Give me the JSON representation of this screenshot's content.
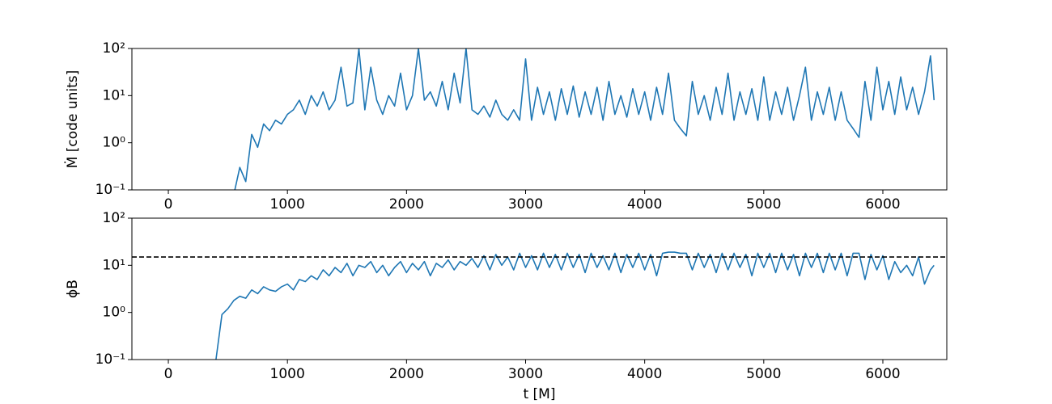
{
  "chart_data": [
    {
      "type": "line",
      "ylabel": "Ṁ [code units]",
      "xlim": [
        -306,
        6537
      ],
      "xticks": [
        0,
        1000,
        2000,
        3000,
        4000,
        5000,
        6000
      ],
      "ylim": [
        0.1,
        100
      ],
      "log_y": true,
      "yticks": [
        {
          "value": 0.1,
          "label": "10⁻¹"
        },
        {
          "value": 1,
          "label": "10⁰"
        },
        {
          "value": 10,
          "label": "10¹"
        },
        {
          "value": 100,
          "label": "10²"
        }
      ],
      "x": [
        550,
        600,
        650,
        700,
        750,
        800,
        850,
        900,
        950,
        1000,
        1050,
        1100,
        1150,
        1200,
        1250,
        1300,
        1350,
        1400,
        1450,
        1500,
        1550,
        1600,
        1650,
        1700,
        1750,
        1800,
        1850,
        1900,
        1950,
        2000,
        2050,
        2100,
        2150,
        2200,
        2250,
        2300,
        2350,
        2400,
        2450,
        2500,
        2550,
        2600,
        2650,
        2700,
        2750,
        2800,
        2850,
        2900,
        2950,
        3000,
        3050,
        3100,
        3150,
        3200,
        3250,
        3300,
        3350,
        3400,
        3450,
        3500,
        3550,
        3600,
        3650,
        3700,
        3750,
        3800,
        3850,
        3900,
        3950,
        4000,
        4050,
        4100,
        4150,
        4200,
        4250,
        4300,
        4350,
        4400,
        4450,
        4500,
        4550,
        4600,
        4650,
        4700,
        4750,
        4800,
        4850,
        4900,
        4950,
        5000,
        5050,
        5100,
        5150,
        5200,
        5250,
        5300,
        5350,
        5400,
        5450,
        5500,
        5550,
        5600,
        5650,
        5700,
        5750,
        5800,
        5850,
        5900,
        5950,
        6000,
        6050,
        6100,
        6150,
        6200,
        6250,
        6300,
        6350,
        6400,
        6430
      ],
      "series": [
        {
          "color": "#1f77b4",
          "values": [
            0.08,
            0.3,
            0.15,
            1.5,
            0.8,
            2.5,
            1.8,
            3,
            2.5,
            4,
            5,
            8,
            4,
            10,
            6,
            12,
            5,
            8,
            40,
            6,
            7,
            100,
            5,
            40,
            8,
            4,
            10,
            6,
            30,
            5,
            10,
            100,
            8,
            12,
            6,
            20,
            5,
            30,
            7,
            100,
            5,
            4,
            6,
            3.5,
            8,
            4,
            3,
            5,
            3,
            60,
            3,
            15,
            4,
            12,
            3,
            14,
            4,
            16,
            3.5,
            12,
            4,
            15,
            3,
            20,
            4,
            10,
            3.5,
            14,
            4,
            12,
            3,
            15,
            4,
            30,
            3,
            2,
            1.4,
            20,
            4,
            10,
            3,
            15,
            4,
            30,
            3,
            12,
            4,
            14,
            3,
            25,
            3,
            12,
            4,
            15,
            3,
            10,
            40,
            3,
            12,
            4,
            15,
            3,
            12,
            3,
            2,
            1.3,
            20,
            3,
            40,
            5,
            20,
            4,
            25,
            5,
            15,
            4,
            12,
            70,
            8
          ]
        }
      ]
    },
    {
      "type": "line",
      "ylabel": "ϕB",
      "xlabel": "t [M]",
      "xlim": [
        -306,
        6537
      ],
      "xticks": [
        0,
        1000,
        2000,
        3000,
        4000,
        5000,
        6000
      ],
      "ylim": [
        0.1,
        100
      ],
      "log_y": true,
      "yticks": [
        {
          "value": 0.1,
          "label": "10⁻¹"
        },
        {
          "value": 1,
          "label": "10⁰"
        },
        {
          "value": 10,
          "label": "10¹"
        },
        {
          "value": 100,
          "label": "10²"
        }
      ],
      "hlines": [
        {
          "value": 15,
          "color": "#000000",
          "style": "dashed"
        }
      ],
      "x": [
        400,
        450,
        500,
        550,
        600,
        650,
        700,
        750,
        800,
        850,
        900,
        950,
        1000,
        1050,
        1100,
        1150,
        1200,
        1250,
        1300,
        1350,
        1400,
        1450,
        1500,
        1550,
        1600,
        1650,
        1700,
        1750,
        1800,
        1850,
        1900,
        1950,
        2000,
        2050,
        2100,
        2150,
        2200,
        2250,
        2300,
        2350,
        2400,
        2450,
        2500,
        2550,
        2600,
        2650,
        2700,
        2750,
        2800,
        2850,
        2900,
        2950,
        3000,
        3050,
        3100,
        3150,
        3200,
        3250,
        3300,
        3350,
        3400,
        3450,
        3500,
        3550,
        3600,
        3650,
        3700,
        3750,
        3800,
        3850,
        3900,
        3950,
        4000,
        4050,
        4100,
        4150,
        4200,
        4250,
        4300,
        4350,
        4400,
        4450,
        4500,
        4550,
        4600,
        4650,
        4700,
        4750,
        4800,
        4850,
        4900,
        4950,
        5000,
        5050,
        5100,
        5150,
        5200,
        5250,
        5300,
        5350,
        5400,
        5450,
        5500,
        5550,
        5600,
        5650,
        5700,
        5750,
        5800,
        5850,
        5900,
        5950,
        6000,
        6050,
        6100,
        6150,
        6200,
        6250,
        6300,
        6350,
        6400,
        6430
      ],
      "series": [
        {
          "color": "#1f77b4",
          "values": [
            0.1,
            0.9,
            1.2,
            1.8,
            2.2,
            2,
            3,
            2.5,
            3.5,
            3,
            2.8,
            3.5,
            4,
            3,
            5,
            4.5,
            6,
            5,
            8,
            6,
            9,
            7,
            11,
            6,
            10,
            9,
            12,
            7,
            10,
            6,
            9,
            12,
            7,
            11,
            8,
            12,
            6,
            11,
            9,
            13,
            8,
            12,
            10,
            14,
            9,
            16,
            8,
            17,
            10,
            15,
            8,
            18,
            9,
            16,
            8,
            18,
            9,
            17,
            8,
            18,
            9,
            17,
            7,
            18,
            9,
            16,
            8,
            18,
            7,
            17,
            9,
            18,
            8,
            17,
            6,
            18,
            19,
            19,
            18,
            18,
            8,
            18,
            9,
            17,
            7,
            18,
            8,
            18,
            9,
            17,
            6,
            18,
            9,
            18,
            7,
            18,
            8,
            17,
            6,
            18,
            9,
            18,
            7,
            18,
            8,
            18,
            6,
            18,
            18,
            5,
            17,
            8,
            16,
            5,
            12,
            7,
            10,
            6,
            15,
            4,
            8,
            10
          ]
        }
      ]
    }
  ]
}
